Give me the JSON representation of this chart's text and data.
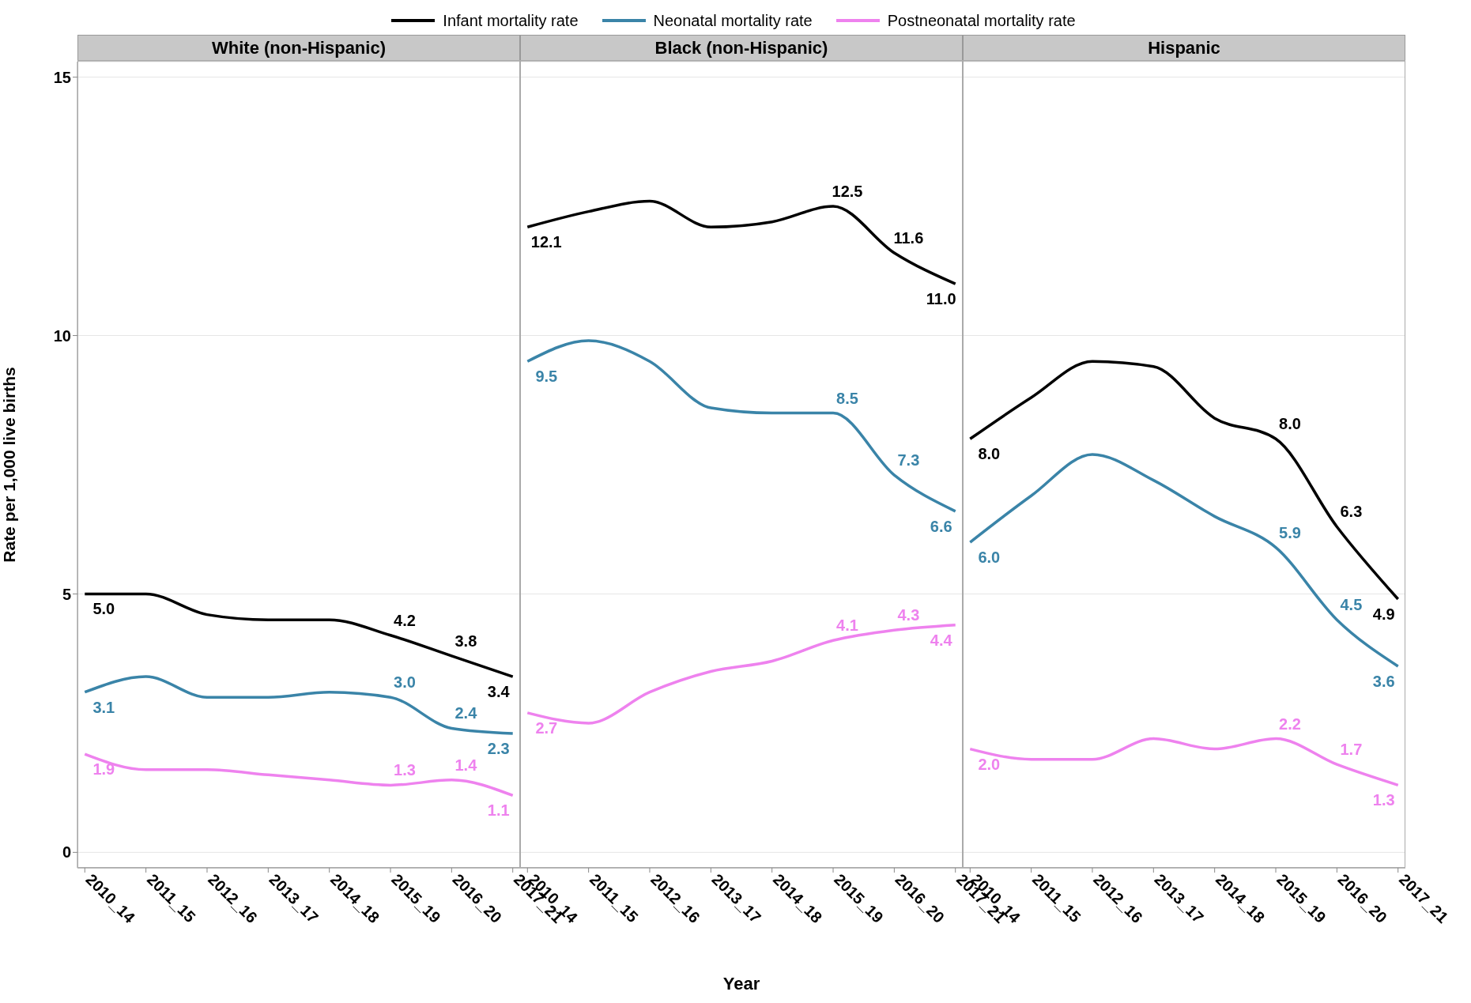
{
  "chart_data": [
    {
      "type": "line",
      "title": "White (non-Hispanic)",
      "ylabel": "Rate per 1,000 live births",
      "categories": [
        "2010_14",
        "2011_15",
        "2012_16",
        "2013_17",
        "2014_18",
        "2015_19",
        "2016_20",
        "2017_21"
      ],
      "ylim": [
        -0.3,
        15.3
      ],
      "yticks": [
        0,
        5,
        10,
        15
      ],
      "grid": "y",
      "legend": "top",
      "series": [
        {
          "name": "Infant mortality rate",
          "color": "#000000",
          "values": [
            5.0,
            5.0,
            4.6,
            4.5,
            4.5,
            4.2,
            3.8,
            3.4
          ],
          "value_labels": [
            "5.0",
            null,
            null,
            null,
            null,
            "4.2",
            "3.8",
            "3.4"
          ]
        },
        {
          "name": "Neonatal mortality rate",
          "color": "#3a84a8",
          "values": [
            3.1,
            3.4,
            3.0,
            3.0,
            3.1,
            3.0,
            2.4,
            2.3
          ],
          "value_labels": [
            "3.1",
            null,
            null,
            null,
            null,
            "3.0",
            "2.4",
            "2.3"
          ]
        },
        {
          "name": "Postneonatal mortality rate",
          "color": "#ee82ee",
          "values": [
            1.9,
            1.6,
            1.6,
            1.5,
            1.4,
            1.3,
            1.4,
            1.1
          ],
          "value_labels": [
            "1.9",
            null,
            null,
            null,
            null,
            "1.3",
            "1.4",
            "1.1"
          ]
        }
      ]
    },
    {
      "type": "line",
      "title": "Black (non-Hispanic)",
      "xlabel": "Year",
      "categories": [
        "2010_14",
        "2011_15",
        "2012_16",
        "2013_17",
        "2014_18",
        "2015_19",
        "2016_20",
        "2017_21"
      ],
      "ylim": [
        -0.3,
        15.3
      ],
      "yticks": [
        0,
        5,
        10,
        15
      ],
      "grid": "y",
      "tick_labels": "x",
      "series": [
        {
          "color": "#000000",
          "values": [
            12.1,
            12.4,
            12.6,
            12.1,
            12.2,
            12.5,
            11.6,
            11.0
          ],
          "value_labels": [
            "12.1",
            null,
            null,
            null,
            null,
            "12.5",
            "11.6",
            "11.0"
          ]
        },
        {
          "color": "#3a84a8",
          "values": [
            9.5,
            9.9,
            9.5,
            8.6,
            8.5,
            8.5,
            7.3,
            6.6
          ],
          "value_labels": [
            "9.5",
            null,
            null,
            null,
            null,
            "8.5",
            "7.3",
            "6.6"
          ]
        },
        {
          "color": "#ee82ee",
          "values": [
            2.7,
            2.5,
            3.1,
            3.5,
            3.7,
            4.1,
            4.3,
            4.4
          ],
          "value_labels": [
            "2.7",
            null,
            null,
            null,
            null,
            "4.1",
            "4.3",
            "4.4"
          ]
        }
      ]
    },
    {
      "type": "line",
      "title": "Hispanic",
      "categories": [
        "2010_14",
        "2011_15",
        "2012_16",
        "2013_17",
        "2014_18",
        "2015_19",
        "2016_20",
        "2017_21"
      ],
      "ylim": [
        -0.3,
        15.3
      ],
      "yticks": [
        0,
        5,
        10,
        15
      ],
      "grid": "y",
      "tick_labels": "x",
      "series": [
        {
          "color": "#000000",
          "values": [
            8.0,
            8.8,
            9.5,
            9.4,
            8.4,
            8.0,
            6.3,
            4.9
          ],
          "value_labels": [
            "8.0",
            null,
            null,
            null,
            null,
            "8.0",
            "6.3",
            "4.9"
          ]
        },
        {
          "color": "#3a84a8",
          "values": [
            6.0,
            6.9,
            7.7,
            7.2,
            6.5,
            5.9,
            4.5,
            3.6
          ],
          "value_labels": [
            "6.0",
            null,
            null,
            null,
            null,
            "5.9",
            "4.5",
            "3.6"
          ]
        },
        {
          "color": "#ee82ee",
          "values": [
            2.0,
            1.8,
            1.8,
            2.2,
            2.0,
            2.2,
            1.7,
            1.3
          ],
          "value_labels": [
            "2.0",
            null,
            null,
            null,
            null,
            "2.2",
            "1.7",
            "1.3"
          ]
        }
      ]
    }
  ]
}
